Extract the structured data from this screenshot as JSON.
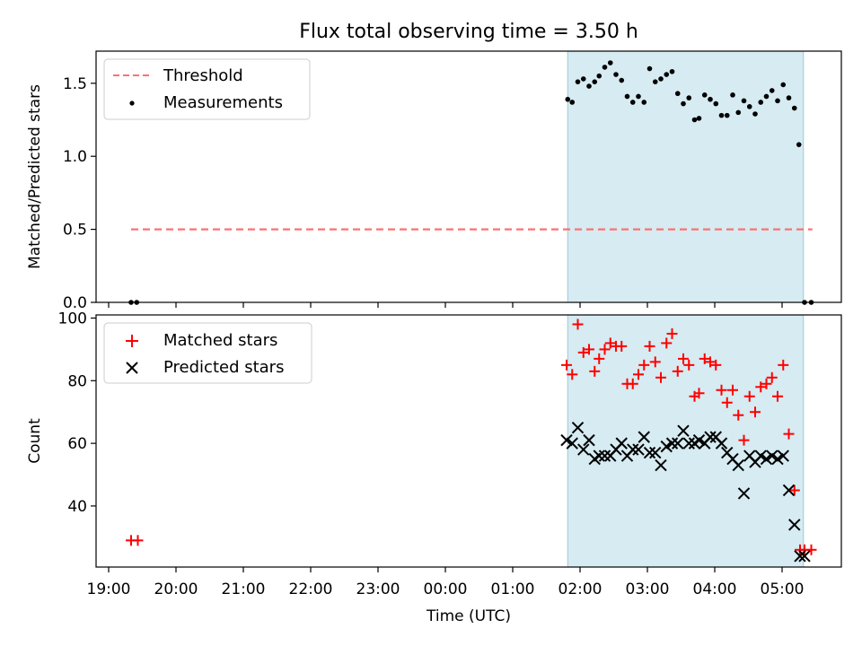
{
  "title": "Flux total observing time = 3.50 h",
  "colors": {
    "threshold": "#ff7070",
    "measurement": "#000000",
    "matched": "#ff0000",
    "predicted": "#000000",
    "span": "#add8e6"
  },
  "chart_data": [
    {
      "type": "scatter",
      "ylabel": "Matched/Predicted stars",
      "ylim": [
        0,
        1.72
      ],
      "yticks": [
        0.0,
        0.5,
        1.0,
        1.5
      ],
      "ytick_labels": [
        "0.0",
        "0.5",
        "1.0",
        "1.5"
      ],
      "legend_placement": "top-left",
      "grid": false,
      "observing_span": [
        "01:49",
        "05:19"
      ],
      "threshold": {
        "name": "Threshold",
        "value": 0.5,
        "x_start": "19:20",
        "x_end": "05:27"
      },
      "series": [
        {
          "name": "Measurements",
          "x": [
            "19:20",
            "19:25",
            "01:49",
            "01:53",
            "01:58",
            "02:03",
            "02:08",
            "02:13",
            "02:17",
            "02:22",
            "02:27",
            "02:32",
            "02:37",
            "02:42",
            "02:47",
            "02:52",
            "02:57",
            "03:02",
            "03:07",
            "03:12",
            "03:17",
            "03:22",
            "03:27",
            "03:32",
            "03:37",
            "03:42",
            "03:46",
            "03:51",
            "03:56",
            "04:01",
            "04:06",
            "04:11",
            "04:16",
            "04:21",
            "04:26",
            "04:31",
            "04:36",
            "04:41",
            "04:46",
            "04:51",
            "04:56",
            "05:01",
            "05:06",
            "05:11",
            "05:15",
            "05:20",
            "05:26"
          ],
          "values": [
            0.0,
            0.0,
            1.39,
            1.37,
            1.51,
            1.53,
            1.48,
            1.51,
            1.55,
            1.61,
            1.64,
            1.56,
            1.52,
            1.41,
            1.37,
            1.41,
            1.37,
            1.6,
            1.51,
            1.53,
            1.56,
            1.58,
            1.43,
            1.36,
            1.4,
            1.25,
            1.26,
            1.42,
            1.39,
            1.36,
            1.28,
            1.28,
            1.42,
            1.3,
            1.38,
            1.34,
            1.29,
            1.37,
            1.41,
            1.45,
            1.38,
            1.49,
            1.4,
            1.33,
            1.08,
            0.0,
            0.0
          ]
        }
      ]
    },
    {
      "type": "scatter",
      "xlabel": "Time (UTC)",
      "ylabel": "Count",
      "ylim": [
        20.5,
        101
      ],
      "yticks": [
        40,
        60,
        80,
        100
      ],
      "ytick_labels": [
        "40",
        "60",
        "80",
        "100"
      ],
      "xticks": [
        "19:00",
        "20:00",
        "21:00",
        "22:00",
        "23:00",
        "00:00",
        "01:00",
        "02:00",
        "03:00",
        "04:00",
        "05:00"
      ],
      "legend_placement": "top-left",
      "grid": false,
      "observing_span": [
        "01:49",
        "05:19"
      ],
      "series": [
        {
          "name": "Matched stars",
          "x": [
            "19:20",
            "19:26",
            "01:48",
            "01:53",
            "01:58",
            "02:03",
            "02:08",
            "02:13",
            "02:17",
            "02:22",
            "02:27",
            "02:32",
            "02:37",
            "02:42",
            "02:47",
            "02:52",
            "02:57",
            "03:02",
            "03:07",
            "03:12",
            "03:17",
            "03:22",
            "03:27",
            "03:32",
            "03:37",
            "03:42",
            "03:46",
            "03:51",
            "03:56",
            "04:01",
            "04:06",
            "04:11",
            "04:16",
            "04:21",
            "04:26",
            "04:31",
            "04:36",
            "04:41",
            "04:46",
            "04:51",
            "04:56",
            "05:01",
            "05:06",
            "05:11",
            "05:16",
            "05:20",
            "05:26"
          ],
          "values": [
            29,
            29,
            85,
            82,
            98,
            89,
            90,
            83,
            87,
            90,
            92,
            91,
            91,
            79,
            79,
            82,
            85,
            91,
            86,
            81,
            92,
            95,
            83,
            87,
            85,
            75,
            76,
            87,
            86,
            85,
            77,
            73,
            77,
            69,
            61,
            75,
            70,
            78,
            79,
            81,
            75,
            85,
            63,
            45,
            26,
            26,
            26
          ]
        },
        {
          "name": "Predicted stars",
          "x": [
            "01:48",
            "01:53",
            "01:58",
            "02:03",
            "02:08",
            "02:13",
            "02:17",
            "02:22",
            "02:27",
            "02:32",
            "02:37",
            "02:42",
            "02:47",
            "02:52",
            "02:57",
            "03:02",
            "03:07",
            "03:12",
            "03:17",
            "03:22",
            "03:27",
            "03:32",
            "03:37",
            "03:42",
            "03:46",
            "03:51",
            "03:56",
            "04:01",
            "04:06",
            "04:11",
            "04:16",
            "04:21",
            "04:26",
            "04:31",
            "04:36",
            "04:41",
            "04:46",
            "04:51",
            "04:56",
            "05:01",
            "05:06",
            "05:11",
            "05:16",
            "05:20"
          ],
          "values": [
            61,
            60,
            65,
            58,
            61,
            55,
            56,
            56,
            56,
            58,
            60,
            56,
            58,
            58,
            62,
            57,
            57,
            53,
            59,
            60,
            60,
            64,
            60,
            60,
            61,
            60,
            62,
            62,
            60,
            57,
            55,
            53,
            44,
            56,
            54,
            56,
            55,
            56,
            55,
            56,
            45,
            34,
            24,
            24
          ]
        }
      ]
    }
  ]
}
